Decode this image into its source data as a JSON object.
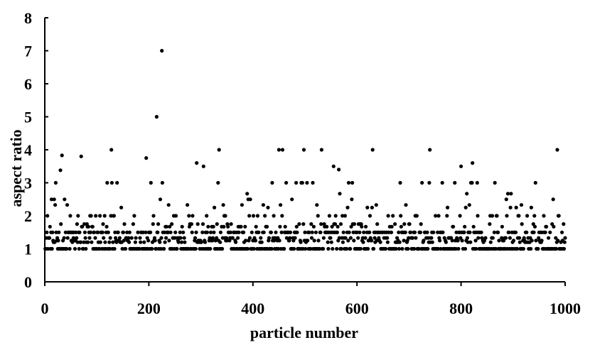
{
  "chart_data": {
    "type": "scatter",
    "title": "",
    "xlabel": "particle number",
    "ylabel": "aspect ratio",
    "xlim": [
      0,
      1000
    ],
    "ylim": [
      0,
      8
    ],
    "xticks": [
      0,
      200,
      400,
      600,
      800,
      1000
    ],
    "yticks": [
      0,
      1,
      2,
      3,
      4,
      5,
      6,
      7,
      8
    ],
    "grid": false,
    "legend": "none",
    "marker_color": "#000000",
    "notable_points": [
      {
        "x": 225,
        "y": 7.0
      },
      {
        "x": 215,
        "y": 5.0
      },
      {
        "x": 128,
        "y": 4.0
      },
      {
        "x": 195,
        "y": 3.75
      },
      {
        "x": 335,
        "y": 4.0
      },
      {
        "x": 450,
        "y": 4.0
      },
      {
        "x": 457,
        "y": 4.0
      },
      {
        "x": 498,
        "y": 4.0
      },
      {
        "x": 532,
        "y": 4.0
      },
      {
        "x": 630,
        "y": 4.0
      },
      {
        "x": 740,
        "y": 4.0
      },
      {
        "x": 985,
        "y": 4.0
      },
      {
        "x": 33,
        "y": 3.83
      },
      {
        "x": 70,
        "y": 3.8
      },
      {
        "x": 292,
        "y": 3.6
      },
      {
        "x": 305,
        "y": 3.5
      },
      {
        "x": 555,
        "y": 3.5
      },
      {
        "x": 565,
        "y": 3.4
      },
      {
        "x": 800,
        "y": 3.5
      },
      {
        "x": 822,
        "y": 3.6
      },
      {
        "x": 30,
        "y": 3.38
      }
    ],
    "band_distribution": [
      {
        "y": 1.0,
        "share": 0.34
      },
      {
        "y": 1.2,
        "share": 0.08
      },
      {
        "y": 1.25,
        "share": 0.08
      },
      {
        "y": 1.33,
        "share": 0.12
      },
      {
        "y": 1.5,
        "share": 0.18
      },
      {
        "y": 1.67,
        "share": 0.06
      },
      {
        "y": 1.75,
        "share": 0.04
      },
      {
        "y": 2.0,
        "share": 0.06
      },
      {
        "y": 2.25,
        "share": 0.01
      },
      {
        "y": 2.33,
        "share": 0.01
      },
      {
        "y": 2.5,
        "share": 0.015
      },
      {
        "y": 2.67,
        "share": 0.005
      },
      {
        "y": 3.0,
        "share": 0.025
      }
    ],
    "n_points": 1000
  }
}
